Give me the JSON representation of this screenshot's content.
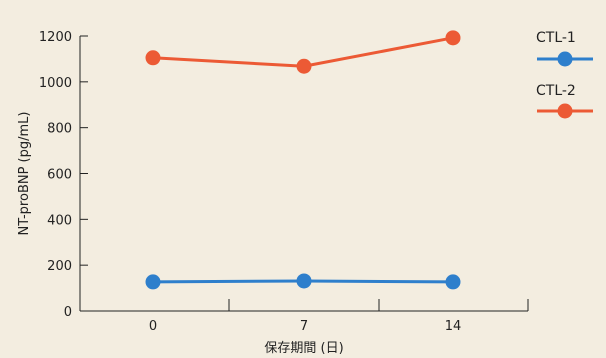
{
  "chart_data": {
    "type": "line",
    "xlabel": "保存期間 (日)",
    "ylabel": "NT-proBNP (pg/mL)",
    "x": [
      0,
      7,
      14
    ],
    "x_tick_labels": [
      "0",
      "7",
      "14"
    ],
    "ylim": [
      0,
      1200
    ],
    "y_ticks": [
      0,
      200,
      400,
      600,
      800,
      1000,
      1200
    ],
    "y_tick_labels": [
      "0",
      "200",
      "400",
      "600",
      "800",
      "1000",
      "1200"
    ],
    "grid": false,
    "legend_position": "right",
    "series": [
      {
        "name": "CTL-1",
        "color": "#2e7fcc",
        "values": [
          127,
          131,
          127
        ]
      },
      {
        "name": "CTL-2",
        "color": "#ec5a35",
        "values": [
          1105,
          1068,
          1192
        ]
      }
    ]
  }
}
